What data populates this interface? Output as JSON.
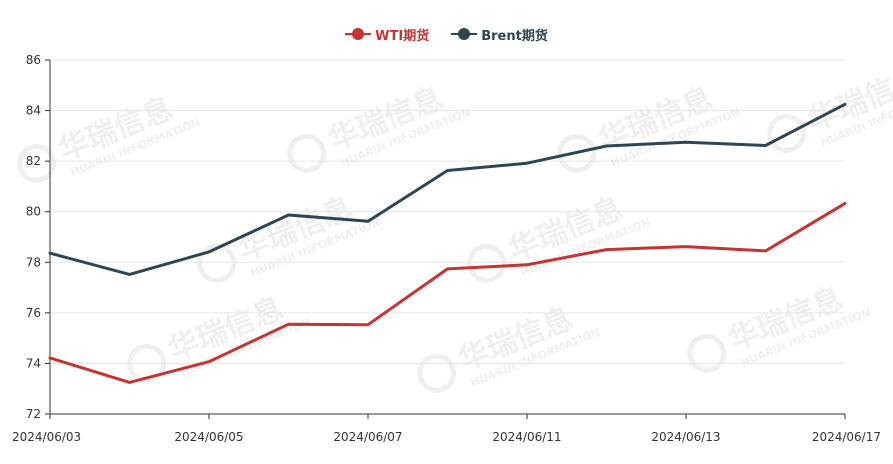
{
  "colors": {
    "wti": "#c23531",
    "brent": "#2f4554",
    "axis": "#333333",
    "grid": "#e6e6e6"
  },
  "watermark": {
    "brand": "华瑞信息",
    "sub": "HUARUI INFORMATION"
  },
  "chart_data": {
    "type": "line",
    "title": "",
    "xlabel": "",
    "ylabel": "",
    "ylim": [
      72,
      86
    ],
    "yticks": [
      72,
      74,
      76,
      78,
      80,
      82,
      84,
      86
    ],
    "x": [
      "2024/06/03",
      "2024/06/04",
      "2024/06/05",
      "2024/06/06",
      "2024/06/07",
      "2024/06/10",
      "2024/06/11",
      "2024/06/12",
      "2024/06/13",
      "2024/06/14",
      "2024/06/17"
    ],
    "xtick_labels": [
      "2024/06/03",
      "2024/06/05",
      "2024/06/07",
      "2024/06/11",
      "2024/06/13",
      "2024/06/17"
    ],
    "grid": "horizontal",
    "legend_position": "top-center",
    "series": [
      {
        "name": "WTI期货",
        "color": "#c23531",
        "values": [
          74.22,
          73.25,
          74.07,
          75.55,
          75.53,
          77.74,
          77.9,
          78.5,
          78.62,
          78.45,
          80.33
        ]
      },
      {
        "name": "Brent期货",
        "color": "#2f4554",
        "values": [
          78.36,
          77.52,
          78.41,
          79.87,
          79.62,
          81.63,
          81.92,
          82.6,
          82.75,
          82.62,
          84.25
        ]
      }
    ]
  }
}
